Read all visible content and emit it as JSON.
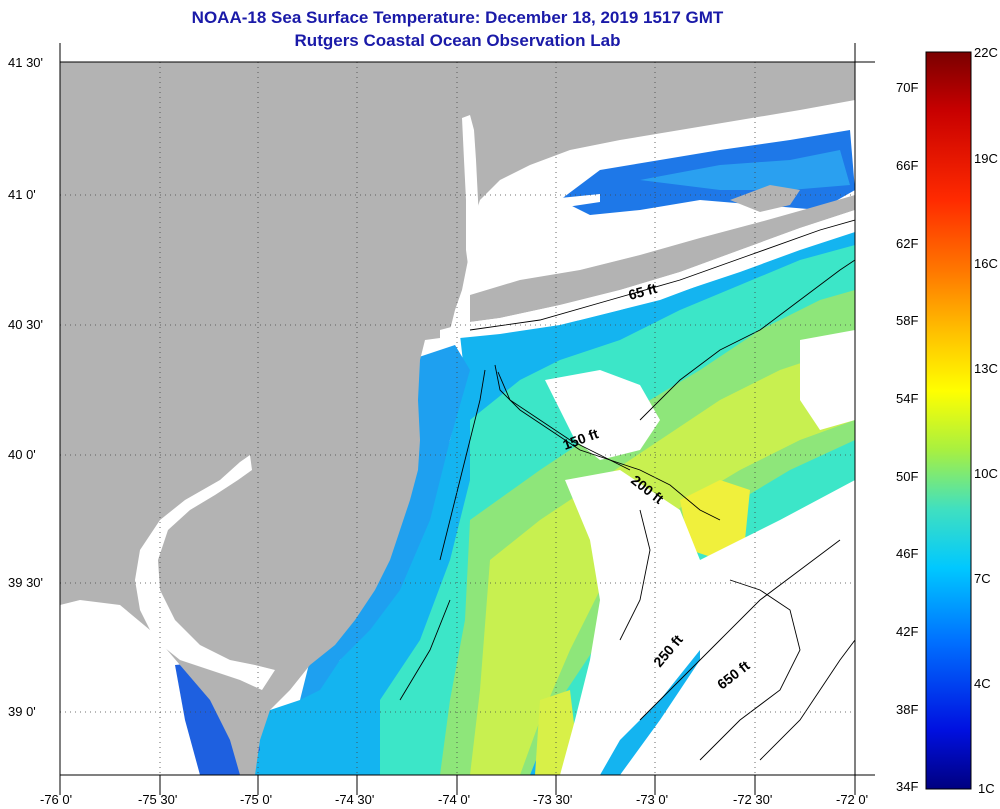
{
  "title": {
    "line1": "NOAA-18 Sea Surface Temperature:  December 18, 2019 1517 GMT",
    "line2": "Rutgers Coastal Ocean Observation Lab"
  },
  "map": {
    "lat_labels": [
      "41 30'",
      "41 0'",
      "40 30'",
      "40 0'",
      "39 30'",
      "39 0'"
    ],
    "lon_labels": [
      "-76 0'",
      "-75 30'",
      "-75 0'",
      "-74 30'",
      "-74 0'",
      "-73 30'",
      "-73 0'",
      "-72 30'",
      "-72 0'"
    ],
    "depth_labels": [
      "65 ft",
      "150 ft",
      "200 ft",
      "250 ft",
      "650 ft"
    ],
    "colors": {
      "land": "#b3b3b3",
      "no_data": "#ffffff",
      "cold": "#1e50d8",
      "cool": "#14b4f0",
      "mid": "#3ce6c8",
      "warm": "#c8f050",
      "warmest": "#f0f03c"
    }
  },
  "colorbar": {
    "fahrenheit_labels": [
      "70F",
      "66F",
      "62F",
      "58F",
      "54F",
      "50F",
      "46F",
      "42F",
      "38F",
      "34F"
    ],
    "celsius_labels": [
      "22C",
      "19C",
      "16C",
      "13C",
      "10C",
      "7C",
      "4C",
      "1C"
    ],
    "gradient": [
      "#7a0000",
      "#c80000",
      "#ff2a00",
      "#ff7a00",
      "#ffc000",
      "#ffff00",
      "#a8f040",
      "#40e0c0",
      "#00c8ff",
      "#0070ff",
      "#0010e0",
      "#000080"
    ]
  }
}
